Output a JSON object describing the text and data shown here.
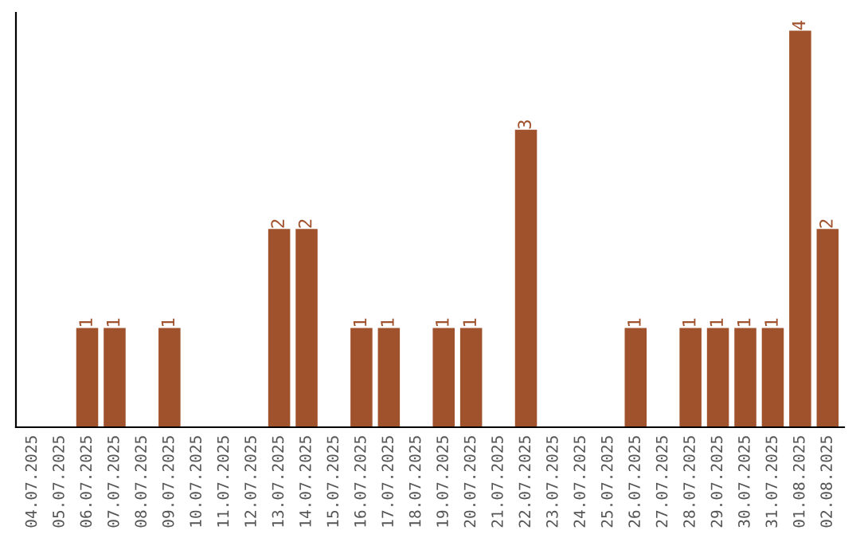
{
  "chart_data": {
    "type": "bar",
    "categories": [
      "04.07.2025",
      "05.07.2025",
      "06.07.2025",
      "07.07.2025",
      "08.07.2025",
      "09.07.2025",
      "10.07.2025",
      "11.07.2025",
      "12.07.2025",
      "13.07.2025",
      "14.07.2025",
      "15.07.2025",
      "16.07.2025",
      "17.07.2025",
      "18.07.2025",
      "19.07.2025",
      "20.07.2025",
      "21.07.2025",
      "22.07.2025",
      "23.07.2025",
      "24.07.2025",
      "25.07.2025",
      "26.07.2025",
      "27.07.2025",
      "28.07.2025",
      "29.07.2025",
      "30.07.2025",
      "31.07.2025",
      "01.08.2025",
      "02.08.2025"
    ],
    "values": [
      0,
      0,
      1,
      1,
      0,
      1,
      0,
      0,
      0,
      2,
      2,
      0,
      1,
      1,
      0,
      1,
      1,
      0,
      3,
      0,
      0,
      0,
      1,
      0,
      1,
      1,
      1,
      1,
      4,
      2
    ],
    "value_labels": [
      null,
      null,
      "1",
      "1",
      null,
      "1",
      null,
      null,
      null,
      "2",
      "2",
      null,
      "1",
      "1",
      null,
      "1",
      "1",
      null,
      "3",
      null,
      null,
      null,
      "1",
      null,
      "1",
      "1",
      "1",
      "1",
      "4",
      "2"
    ],
    "color": "#a0522d",
    "tick_labels": "x",
    "grid": false,
    "legend": false
  }
}
